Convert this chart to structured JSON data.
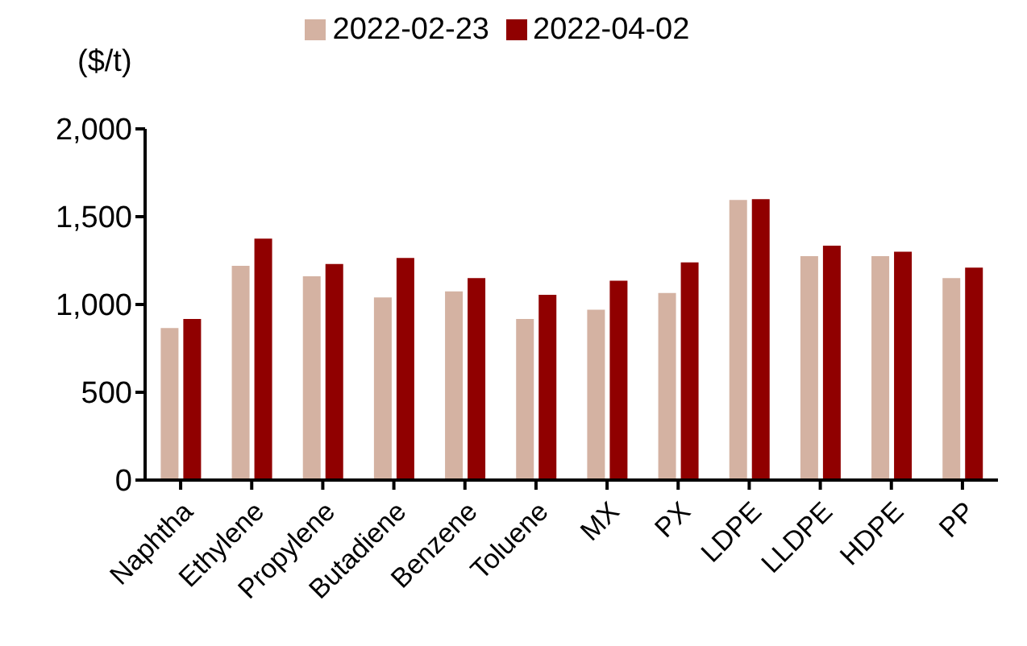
{
  "chart_data": {
    "type": "bar",
    "ylabel": "($/t)",
    "categories": [
      "Naphtha",
      "Ethylene",
      "Propylene",
      "Butadiene",
      "Benzene",
      "Toluene",
      "MX",
      "PX",
      "LDPE",
      "LLDPE",
      "HDPE",
      "PP"
    ],
    "series": [
      {
        "name": "2022-02-23",
        "color": "#d4b2a2",
        "values": [
          866,
          1220,
          1160,
          1040,
          1075,
          918,
          970,
          1065,
          1595,
          1275,
          1275,
          1150
        ]
      },
      {
        "name": "2022-04-02",
        "color": "#900000",
        "values": [
          918,
          1375,
          1230,
          1265,
          1150,
          1055,
          1135,
          1240,
          1600,
          1335,
          1300,
          1210
        ]
      }
    ],
    "ylim": [
      0,
      2000
    ],
    "yticks": [
      {
        "value": 0,
        "label": "0"
      },
      {
        "value": 500,
        "label": "500"
      },
      {
        "value": 1000,
        "label": "1,000"
      },
      {
        "value": 1500,
        "label": "1,500"
      },
      {
        "value": 2000,
        "label": "2,000"
      }
    ],
    "grid": false,
    "legend": "top"
  }
}
